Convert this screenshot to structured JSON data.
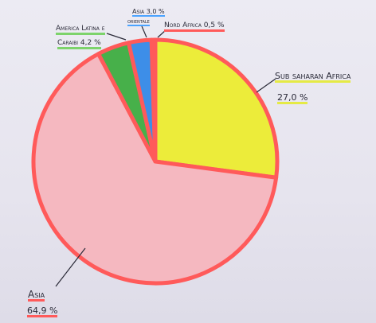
{
  "chart_data": {
    "type": "pie",
    "slices": [
      {
        "label": "Sub saharan Africa",
        "value": 27.0,
        "value_label": "27,0 %",
        "color": "#ecec3a",
        "edge": "#ff5a5a"
      },
      {
        "label": "Asia",
        "value": 64.9,
        "value_label": "64,9 %",
        "color": "#f5b8c0",
        "edge": "#ff5a5a"
      },
      {
        "label": "America Latina e Caraibi",
        "value": 4.2,
        "value_label": "4,2 %",
        "color": "#47b04a",
        "edge": "#ff5a5a"
      },
      {
        "label": "Asia orientale",
        "value": 3.0,
        "value_label": "3,0 %",
        "color": "#3d8ee8",
        "edge": "#ff5a5a"
      },
      {
        "label": "Nord Africa",
        "value": 0.5,
        "value_label": "0,5 %",
        "color": "#ffffff",
        "edge": "#ff5a5a"
      }
    ],
    "start_angle_deg": -90,
    "direction": "clockwise"
  },
  "labels": {
    "ssa_name": "Sub saharan Africa",
    "ssa_value": "27,0 %",
    "asia_name": "Asia",
    "asia_value": "64,9 %",
    "latam_name": "America Latina e",
    "latam_value": "Caraibi 4,2 %",
    "east_asia_name": "Asia 3,0 %",
    "east_asia_sub": "orientale",
    "north_africa": "Nord Africa 0,5 %"
  }
}
